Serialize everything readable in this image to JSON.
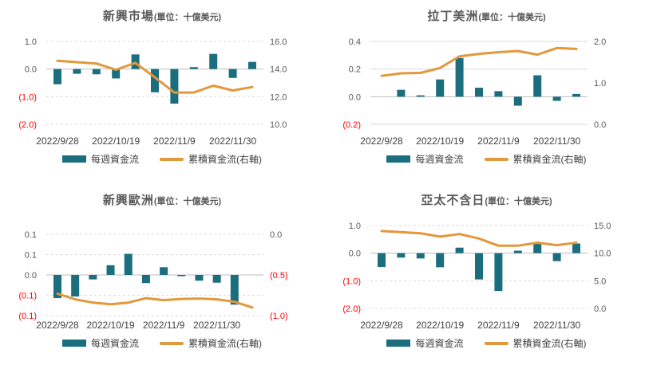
{
  "colors": {
    "bar": "#1b6e7e",
    "line": "#e2983c",
    "negative_tick": "#ff0000",
    "tick_text": "#595959",
    "title_text": "#595959",
    "date_text": "#404040",
    "grid": "#d9d9d9",
    "zero_line": "#bdbdbd"
  },
  "chart_data": [
    {
      "type": "bar",
      "title": "新興市場",
      "unit_label": "(單位：十億美元)",
      "grid_style": "dashed",
      "legend_position": "bottom",
      "series": [
        {
          "name": "每週資金流",
          "type": "bar",
          "axis": "left",
          "values": [
            -0.55,
            -0.17,
            -0.19,
            -0.34,
            0.53,
            -0.84,
            -1.25,
            0.07,
            0.55,
            -0.32,
            0.26
          ]
        },
        {
          "name": "累積資金流(右軸)",
          "type": "line",
          "axis": "right",
          "values": [
            14.6,
            14.5,
            14.4,
            13.95,
            14.45,
            13.4,
            12.3,
            12.3,
            12.8,
            12.45,
            12.7
          ]
        }
      ],
      "left_axis": {
        "tick_labels": [
          "1.0",
          "0.0",
          "(1.0)",
          "(2.0)"
        ],
        "range": [
          1.0,
          -2.0
        ]
      },
      "right_axis": {
        "tick_labels": [
          "16.0",
          "14.0",
          "12.0",
          "10.0"
        ],
        "range": [
          16.0,
          10.0
        ]
      },
      "x_tick_labels": [
        {
          "index": 0,
          "label": "2022/9/28"
        },
        {
          "index": 3,
          "label": "2022/10/19"
        },
        {
          "index": 6,
          "label": "2022/11/9"
        },
        {
          "index": 9,
          "label": "2022/11/30"
        }
      ]
    },
    {
      "type": "bar",
      "title": "拉丁美洲",
      "unit_label": "(單位：十億美元)",
      "grid_style": "solid",
      "legend_position": "bottom",
      "series": [
        {
          "name": "每週資金流",
          "type": "bar",
          "axis": "left",
          "values": [
            0.0,
            0.05,
            0.01,
            0.125,
            0.28,
            0.065,
            0.04,
            -0.065,
            0.155,
            -0.03,
            0.02
          ]
        },
        {
          "name": "累積資金流(右軸)",
          "type": "line",
          "axis": "right",
          "values": [
            1.17,
            1.23,
            1.24,
            1.36,
            1.64,
            1.7,
            1.74,
            1.77,
            1.68,
            1.84,
            1.82
          ]
        }
      ],
      "left_axis": {
        "tick_labels": [
          "0.4",
          "0.2",
          "0.0",
          "(0.2)"
        ],
        "range": [
          0.4,
          -0.2
        ]
      },
      "right_axis": {
        "tick_labels": [
          "2.0",
          "1.0",
          "0.0"
        ],
        "range": [
          2.0,
          0.0
        ]
      },
      "x_tick_labels": [
        {
          "index": 0,
          "label": "2022/9/28"
        },
        {
          "index": 3,
          "label": "2022/10/19"
        },
        {
          "index": 6,
          "label": "2022/11/9"
        },
        {
          "index": 9,
          "label": "2022/11/30"
        }
      ]
    },
    {
      "type": "bar",
      "title": "新興歐洲",
      "unit_label": "(單位：十億美元)",
      "grid_style": "dashed",
      "legend_position": "bottom",
      "series": [
        {
          "name": "每週資金流",
          "type": "bar",
          "axis": "left",
          "values": [
            -0.057,
            -0.053,
            -0.011,
            0.024,
            0.052,
            -0.02,
            0.019,
            -0.003,
            -0.014,
            -0.019,
            -0.073,
            0
          ]
        },
        {
          "name": "累積資金流(右軸)",
          "type": "line",
          "axis": "right",
          "values": [
            -0.73,
            -0.8,
            -0.84,
            -0.86,
            -0.84,
            -0.785,
            -0.81,
            -0.795,
            -0.79,
            -0.8,
            -0.83,
            -0.9
          ]
        }
      ],
      "left_axis": {
        "tick_labels": [
          "0.1",
          "0.1",
          "0.0",
          "(0.1)",
          "(0.1)"
        ],
        "range": [
          0.1,
          -0.1
        ]
      },
      "right_axis": {
        "tick_labels": [
          "0.0",
          "(0.5)",
          "(1.0)"
        ],
        "range": [
          0.0,
          -1.0
        ]
      },
      "x_tick_labels": [
        {
          "index": 0,
          "label": "2022/9/28"
        },
        {
          "index": 3,
          "label": "2022/10/19"
        },
        {
          "index": 6,
          "label": "2022/11/9"
        },
        {
          "index": 9,
          "label": "2022/11/30"
        }
      ]
    },
    {
      "type": "bar",
      "title": "亞太不含日",
      "unit_label": "(單位：十億美元)",
      "grid_style": "dashed",
      "legend_position": "bottom",
      "series": [
        {
          "name": "每週資金流",
          "type": "bar",
          "axis": "left",
          "values": [
            -0.5,
            -0.16,
            -0.19,
            -0.51,
            0.2,
            -0.95,
            -1.37,
            0.09,
            0.38,
            -0.29,
            0.35
          ]
        },
        {
          "name": "累積資金流(右軸)",
          "type": "line",
          "axis": "right",
          "values": [
            14.0,
            13.8,
            13.6,
            13.0,
            13.45,
            12.65,
            11.35,
            11.35,
            11.9,
            11.45,
            11.9
          ]
        }
      ],
      "left_axis": {
        "tick_labels": [
          "1.0",
          "0.0",
          "(1.0)",
          "(2.0)"
        ],
        "range": [
          1.0,
          -2.0
        ]
      },
      "right_axis": {
        "tick_labels": [
          "15.0",
          "10.0",
          "5.0",
          "0.0"
        ],
        "range": [
          15.0,
          0.0
        ]
      },
      "x_tick_labels": [
        {
          "index": 0,
          "label": "2022/9/28"
        },
        {
          "index": 3,
          "label": "2022/10/19"
        },
        {
          "index": 6,
          "label": "2022/11/9"
        },
        {
          "index": 9,
          "label": "2022/11/30"
        }
      ]
    }
  ]
}
